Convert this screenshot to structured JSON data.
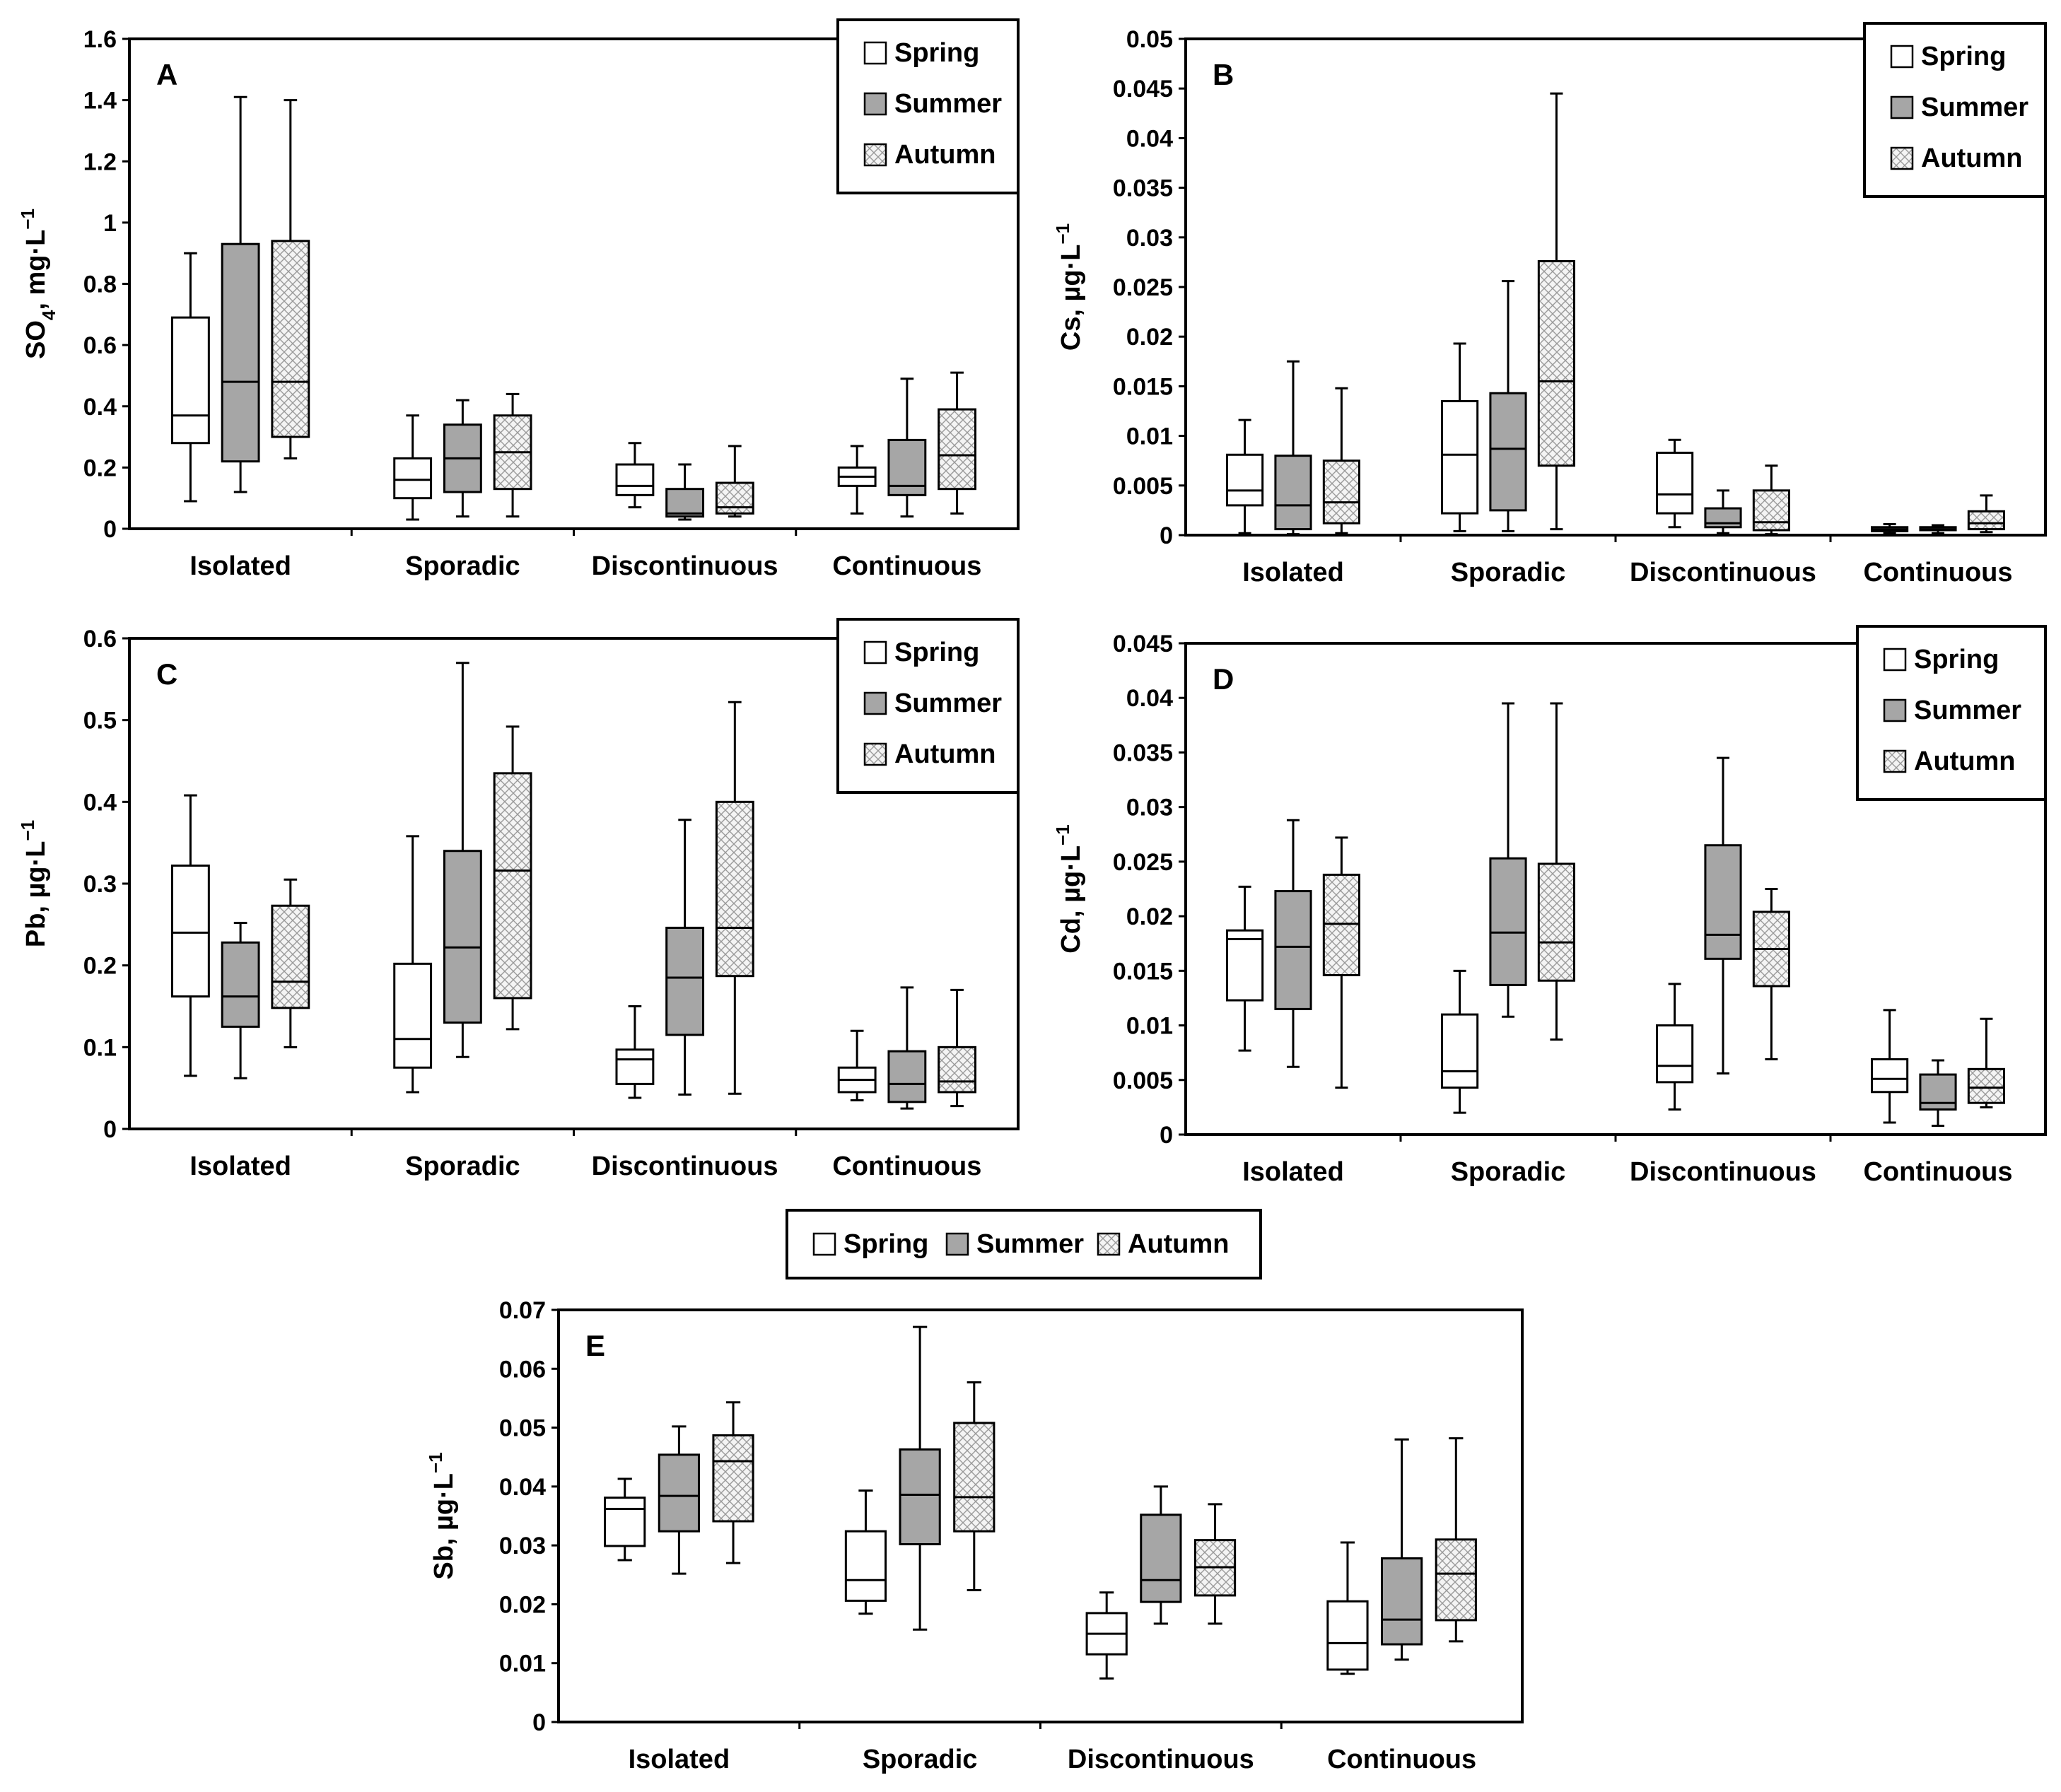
{
  "figure": {
    "season_names": [
      "Spring",
      "Summer",
      "Autumn"
    ],
    "colors": {
      "spring": "#ffffff",
      "summer": "#a6a6a6",
      "autumn_background": "#f4f4f4",
      "autumn_hatch": "#9a9a9a",
      "stroke": "#000000"
    },
    "shared_legend": [
      "Spring",
      "Summer",
      "Autumn"
    ]
  },
  "chart_data": [
    {
      "id": "A",
      "type": "boxplot",
      "panel_letter": "A",
      "ylabel_main": "SO",
      "ylabel_sub": "4",
      "ylabel_rest": ", mg·L",
      "ylabel_sup": "−1",
      "ylim": [
        0,
        1.6
      ],
      "yticks": [
        "0",
        "0.2",
        "0.4",
        "0.6",
        "0.8",
        "1",
        "1.2",
        "1.4",
        "1.6"
      ],
      "grid": false,
      "legend": {
        "position": "top-right",
        "entries": [
          "Spring",
          "Summer",
          "Autumn"
        ]
      },
      "categories": [
        "Isolated",
        "Sporadic",
        "Discontinuous",
        "Continuous"
      ],
      "series": [
        {
          "name": "Spring",
          "boxes": [
            {
              "min": 0.09,
              "q1": 0.28,
              "median": 0.37,
              "q3": 0.69,
              "max": 0.9
            },
            {
              "min": 0.03,
              "q1": 0.1,
              "median": 0.16,
              "q3": 0.23,
              "max": 0.37
            },
            {
              "min": 0.07,
              "q1": 0.11,
              "median": 0.14,
              "q3": 0.21,
              "max": 0.28
            },
            {
              "min": 0.05,
              "q1": 0.14,
              "median": 0.17,
              "q3": 0.2,
              "max": 0.27
            }
          ]
        },
        {
          "name": "Summer",
          "boxes": [
            {
              "min": 0.12,
              "q1": 0.22,
              "median": 0.48,
              "q3": 0.93,
              "max": 1.41
            },
            {
              "min": 0.04,
              "q1": 0.12,
              "median": 0.23,
              "q3": 0.34,
              "max": 0.42
            },
            {
              "min": 0.03,
              "q1": 0.04,
              "median": 0.05,
              "q3": 0.13,
              "max": 0.21
            },
            {
              "min": 0.04,
              "q1": 0.11,
              "median": 0.14,
              "q3": 0.29,
              "max": 0.49
            }
          ]
        },
        {
          "name": "Autumn",
          "boxes": [
            {
              "min": 0.23,
              "q1": 0.3,
              "median": 0.48,
              "q3": 0.94,
              "max": 1.4
            },
            {
              "min": 0.04,
              "q1": 0.13,
              "median": 0.25,
              "q3": 0.37,
              "max": 0.44
            },
            {
              "min": 0.04,
              "q1": 0.05,
              "median": 0.07,
              "q3": 0.15,
              "max": 0.27
            },
            {
              "min": 0.05,
              "q1": 0.13,
              "median": 0.24,
              "q3": 0.39,
              "max": 0.51
            }
          ]
        }
      ]
    },
    {
      "id": "B",
      "type": "boxplot",
      "panel_letter": "B",
      "ylabel_main": "Cs, µg·L",
      "ylabel_sub": "",
      "ylabel_rest": "",
      "ylabel_sup": "−1",
      "ylim": [
        0,
        0.05
      ],
      "yticks": [
        "0",
        "0.005",
        "0.01",
        "0.015",
        "0.02",
        "0.025",
        "0.03",
        "0.035",
        "0.04",
        "0.045",
        "0.05"
      ],
      "grid": false,
      "legend": {
        "position": "top-right",
        "entries": [
          "Spring",
          "Summer",
          "Autumn"
        ]
      },
      "categories": [
        "Isolated",
        "Sporadic",
        "Discontinuous",
        "Continuous"
      ],
      "series": [
        {
          "name": "Spring",
          "boxes": [
            {
              "min": 0.0002,
              "q1": 0.003,
              "median": 0.0045,
              "q3": 0.0081,
              "max": 0.0116
            },
            {
              "min": 0.0004,
              "q1": 0.0022,
              "median": 0.0081,
              "q3": 0.0135,
              "max": 0.0193
            },
            {
              "min": 0.0008,
              "q1": 0.0022,
              "median": 0.0041,
              "q3": 0.0083,
              "max": 0.0096
            },
            {
              "min": 0.0002,
              "q1": 0.0004,
              "median": 0.0006,
              "q3": 0.0008,
              "max": 0.0011
            }
          ]
        },
        {
          "name": "Summer",
          "boxes": [
            {
              "min": 0.0001,
              "q1": 0.0006,
              "median": 0.003,
              "q3": 0.008,
              "max": 0.0175
            },
            {
              "min": 0.0004,
              "q1": 0.0025,
              "median": 0.0087,
              "q3": 0.0143,
              "max": 0.0256
            },
            {
              "min": 0.0002,
              "q1": 0.0008,
              "median": 0.0012,
              "q3": 0.0027,
              "max": 0.0045
            },
            {
              "min": 0.0002,
              "q1": 0.0005,
              "median": 0.0006,
              "q3": 0.0008,
              "max": 0.001
            }
          ]
        },
        {
          "name": "Autumn",
          "boxes": [
            {
              "min": 0.0002,
              "q1": 0.0012,
              "median": 0.0033,
              "q3": 0.0075,
              "max": 0.0148
            },
            {
              "min": 0.0006,
              "q1": 0.007,
              "median": 0.0155,
              "q3": 0.0276,
              "max": 0.0445
            },
            {
              "min": 0.0001,
              "q1": 0.0005,
              "median": 0.0013,
              "q3": 0.0045,
              "max": 0.007
            },
            {
              "min": 0.0003,
              "q1": 0.0006,
              "median": 0.0012,
              "q3": 0.0024,
              "max": 0.004
            }
          ]
        }
      ]
    },
    {
      "id": "C",
      "type": "boxplot",
      "panel_letter": "C",
      "ylabel_main": "Pb, µg·L",
      "ylabel_sub": "",
      "ylabel_rest": "",
      "ylabel_sup": "−1",
      "ylim": [
        0,
        0.6
      ],
      "yticks": [
        "0",
        "0.1",
        "0.2",
        "0.3",
        "0.4",
        "0.5",
        "0.6"
      ],
      "grid": false,
      "legend": {
        "position": "top-right",
        "entries": [
          "Spring",
          "Summer",
          "Autumn"
        ]
      },
      "categories": [
        "Isolated",
        "Sporadic",
        "Discontinuous",
        "Continuous"
      ],
      "series": [
        {
          "name": "Spring",
          "boxes": [
            {
              "min": 0.065,
              "q1": 0.162,
              "median": 0.24,
              "q3": 0.322,
              "max": 0.408
            },
            {
              "min": 0.045,
              "q1": 0.075,
              "median": 0.11,
              "q3": 0.202,
              "max": 0.358
            },
            {
              "min": 0.038,
              "q1": 0.055,
              "median": 0.085,
              "q3": 0.097,
              "max": 0.15
            },
            {
              "min": 0.035,
              "q1": 0.045,
              "median": 0.06,
              "q3": 0.075,
              "max": 0.12
            }
          ]
        },
        {
          "name": "Summer",
          "boxes": [
            {
              "min": 0.062,
              "q1": 0.125,
              "median": 0.162,
              "q3": 0.228,
              "max": 0.252
            },
            {
              "min": 0.088,
              "q1": 0.13,
              "median": 0.222,
              "q3": 0.34,
              "max": 0.57
            },
            {
              "min": 0.042,
              "q1": 0.115,
              "median": 0.185,
              "q3": 0.246,
              "max": 0.378
            },
            {
              "min": 0.025,
              "q1": 0.033,
              "median": 0.055,
              "q3": 0.095,
              "max": 0.173
            }
          ]
        },
        {
          "name": "Autumn",
          "boxes": [
            {
              "min": 0.1,
              "q1": 0.148,
              "median": 0.18,
              "q3": 0.273,
              "max": 0.305
            },
            {
              "min": 0.122,
              "q1": 0.16,
              "median": 0.316,
              "q3": 0.435,
              "max": 0.492
            },
            {
              "min": 0.043,
              "q1": 0.187,
              "median": 0.246,
              "q3": 0.4,
              "max": 0.522
            },
            {
              "min": 0.028,
              "q1": 0.045,
              "median": 0.058,
              "q3": 0.1,
              "max": 0.17
            }
          ]
        }
      ]
    },
    {
      "id": "D",
      "type": "boxplot",
      "panel_letter": "D",
      "ylabel_main": "Cd, µg·L",
      "ylabel_sub": "",
      "ylabel_rest": "",
      "ylabel_sup": "−1",
      "ylim": [
        0,
        0.045
      ],
      "yticks": [
        "0",
        "0.005",
        "0.01",
        "0.015",
        "0.02",
        "0.025",
        "0.03",
        "0.035",
        "0.04",
        "0.045"
      ],
      "grid": false,
      "legend": {
        "position": "top-right",
        "entries": [
          "Spring",
          "Summer",
          "Autumn"
        ]
      },
      "categories": [
        "Isolated",
        "Sporadic",
        "Discontinuous",
        "Continuous"
      ],
      "series": [
        {
          "name": "Spring",
          "boxes": [
            {
              "min": 0.0077,
              "q1": 0.0123,
              "median": 0.0179,
              "q3": 0.0187,
              "max": 0.0227
            },
            {
              "min": 0.002,
              "q1": 0.0043,
              "median": 0.0058,
              "q3": 0.011,
              "max": 0.015
            },
            {
              "min": 0.0023,
              "q1": 0.0048,
              "median": 0.0063,
              "q3": 0.01,
              "max": 0.0138
            },
            {
              "min": 0.0011,
              "q1": 0.0039,
              "median": 0.0051,
              "q3": 0.0069,
              "max": 0.0114
            }
          ]
        },
        {
          "name": "Summer",
          "boxes": [
            {
              "min": 0.0062,
              "q1": 0.0115,
              "median": 0.0172,
              "q3": 0.0223,
              "max": 0.0288
            },
            {
              "min": 0.0108,
              "q1": 0.0137,
              "median": 0.0185,
              "q3": 0.0253,
              "max": 0.0395
            },
            {
              "min": 0.0056,
              "q1": 0.0161,
              "median": 0.0183,
              "q3": 0.0265,
              "max": 0.0345
            },
            {
              "min": 0.0008,
              "q1": 0.0023,
              "median": 0.0029,
              "q3": 0.0055,
              "max": 0.0068
            }
          ]
        },
        {
          "name": "Autumn",
          "boxes": [
            {
              "min": 0.0043,
              "q1": 0.0146,
              "median": 0.0193,
              "q3": 0.0238,
              "max": 0.0272
            },
            {
              "min": 0.0087,
              "q1": 0.0141,
              "median": 0.0176,
              "q3": 0.0248,
              "max": 0.0395
            },
            {
              "min": 0.0069,
              "q1": 0.0136,
              "median": 0.017,
              "q3": 0.0204,
              "max": 0.0225
            },
            {
              "min": 0.0025,
              "q1": 0.0029,
              "median": 0.0043,
              "q3": 0.006,
              "max": 0.0106
            }
          ]
        }
      ]
    },
    {
      "id": "E",
      "type": "boxplot",
      "panel_letter": "E",
      "ylabel_main": "Sb, µg·L",
      "ylabel_sub": "",
      "ylabel_rest": "",
      "ylabel_sup": "−1",
      "ylim": [
        0,
        0.07
      ],
      "yticks": [
        "0",
        "0.01",
        "0.02",
        "0.03",
        "0.04",
        "0.05",
        "0.06",
        "0.07"
      ],
      "grid": false,
      "legend": {
        "position": "above-chart",
        "entries": [
          "Spring",
          "Summer",
          "Autumn"
        ]
      },
      "categories": [
        "Isolated",
        "Sporadic",
        "Discontinuous",
        "Continuous"
      ],
      "series": [
        {
          "name": "Spring",
          "boxes": [
            {
              "min": 0.0275,
              "q1": 0.0299,
              "median": 0.0362,
              "q3": 0.0381,
              "max": 0.0413
            },
            {
              "min": 0.0184,
              "q1": 0.0206,
              "median": 0.0241,
              "q3": 0.0324,
              "max": 0.0393
            },
            {
              "min": 0.0074,
              "q1": 0.0115,
              "median": 0.015,
              "q3": 0.0185,
              "max": 0.022
            },
            {
              "min": 0.0082,
              "q1": 0.0089,
              "median": 0.0134,
              "q3": 0.0205,
              "max": 0.0305
            }
          ]
        },
        {
          "name": "Summer",
          "boxes": [
            {
              "min": 0.0252,
              "q1": 0.0324,
              "median": 0.0384,
              "q3": 0.0454,
              "max": 0.0502
            },
            {
              "min": 0.0157,
              "q1": 0.0302,
              "median": 0.0386,
              "q3": 0.0463,
              "max": 0.0671
            },
            {
              "min": 0.0167,
              "q1": 0.0204,
              "median": 0.0241,
              "q3": 0.0352,
              "max": 0.04
            },
            {
              "min": 0.0106,
              "q1": 0.0132,
              "median": 0.0174,
              "q3": 0.0278,
              "max": 0.048
            }
          ]
        },
        {
          "name": "Autumn",
          "boxes": [
            {
              "min": 0.027,
              "q1": 0.0341,
              "median": 0.0443,
              "q3": 0.0487,
              "max": 0.0543
            },
            {
              "min": 0.0224,
              "q1": 0.0324,
              "median": 0.0382,
              "q3": 0.0508,
              "max": 0.0577
            },
            {
              "min": 0.0167,
              "q1": 0.0215,
              "median": 0.0263,
              "q3": 0.0309,
              "max": 0.037
            },
            {
              "min": 0.0137,
              "q1": 0.0173,
              "median": 0.0252,
              "q3": 0.031,
              "max": 0.0482
            }
          ]
        }
      ]
    }
  ]
}
